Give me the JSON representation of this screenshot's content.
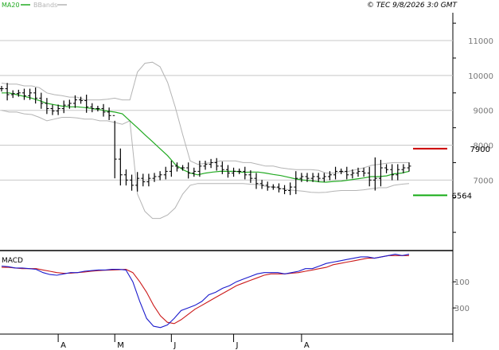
{
  "header": {
    "legend_items": [
      {
        "label": "MA20",
        "color": "#22aa22"
      },
      {
        "label": "BBands",
        "color": "#b4b4b4"
      }
    ],
    "copyright": "© TEC 9/8/2026 3:0 GMT"
  },
  "colors": {
    "price_bars": "#000000",
    "ma20": "#22aa22",
    "bbands": "#b4b4b4",
    "macd_line": "#1a1acc",
    "signal_line": "#cc1a1a",
    "resistance": "#cc0000",
    "support": "#11aa11"
  },
  "chart_data": [
    {
      "type": "ohlc",
      "title": "",
      "ylim": [
        5000,
        11800
      ],
      "y_ticks": [
        7000,
        8000,
        9000,
        10000,
        11000
      ],
      "x_ticks": [
        "A",
        "M",
        "J",
        "J",
        "A"
      ],
      "x_tick_index": [
        10,
        20,
        30,
        41,
        53
      ],
      "levels": [
        {
          "label": "7900",
          "value": 7900,
          "role": "resistance"
        },
        {
          "label": "6564",
          "value": 6564,
          "role": "support"
        }
      ],
      "series": [
        {
          "name": "Price",
          "values": [
            9620,
            9450,
            9480,
            9500,
            9420,
            9500,
            9350,
            9200,
            9050,
            8980,
            9050,
            9150,
            9200,
            9300,
            9280,
            9100,
            9050,
            9050,
            8950,
            8850,
            7600,
            7150,
            7000,
            6850,
            7050,
            6950,
            7050,
            7100,
            7150,
            7250,
            7400,
            7350,
            7350,
            7200,
            7250,
            7400,
            7450,
            7500,
            7400,
            7300,
            7200,
            7250,
            7250,
            7150,
            7050,
            6900,
            6850,
            6800,
            6800,
            6750,
            6700,
            6800,
            7050,
            7100,
            7050,
            7100,
            7050,
            7100,
            7150,
            7250,
            7250,
            7150,
            7200,
            7250,
            7200,
            7000,
            7050,
            7350,
            7300,
            7150,
            7300,
            7350,
            7400
          ]
        },
        {
          "name": "MA20",
          "values": [
            9500,
            9500,
            9450,
            9400,
            9350,
            9280,
            9200,
            9160,
            9120,
            9100,
            9100,
            9080,
            9050,
            9020,
            8980,
            8950,
            8900,
            8700,
            8500,
            8300,
            8100,
            7900,
            7700,
            7450,
            7300,
            7200,
            7150,
            7200,
            7230,
            7250,
            7250,
            7250,
            7220,
            7230,
            7230,
            7200,
            7160,
            7130,
            7080,
            7030,
            7000,
            6980,
            6950,
            6940,
            6960,
            6970,
            7000,
            7030,
            7060,
            7100,
            7100,
            7120,
            7180,
            7200,
            7250
          ]
        },
        {
          "name": "BBand upper",
          "values": [
            9780,
            9750,
            9750,
            9700,
            9700,
            9650,
            9500,
            9450,
            9420,
            9380,
            9380,
            9300,
            9300,
            9300,
            9320,
            9350,
            9300,
            9300,
            10100,
            10350,
            10380,
            10250,
            9800,
            9100,
            8300,
            7550,
            7450,
            7480,
            7500,
            7550,
            7550,
            7550,
            7500,
            7500,
            7450,
            7400,
            7400,
            7350,
            7320,
            7300,
            7300,
            7300,
            7280,
            7200,
            7200,
            7220,
            7250,
            7300,
            7350,
            7420,
            7450,
            7480,
            7500,
            7500,
            7500
          ]
        },
        {
          "name": "BBand lower",
          "values": [
            9000,
            8950,
            8950,
            8900,
            8880,
            8800,
            8700,
            8750,
            8800,
            8800,
            8780,
            8750,
            8750,
            8700,
            8700,
            8650,
            8600,
            8700,
            6600,
            6100,
            5900,
            5900,
            6000,
            6200,
            6600,
            6850,
            6900,
            6900,
            6900,
            6900,
            6900,
            6900,
            6900,
            6880,
            6870,
            6820,
            6800,
            6760,
            6720,
            6700,
            6680,
            6650,
            6640,
            6650,
            6680,
            6700,
            6700,
            6700,
            6720,
            6750,
            6780,
            6780,
            6850,
            6880,
            6900
          ]
        }
      ]
    },
    {
      "type": "line",
      "title": "MACD",
      "ylim": [
        -500,
        120
      ],
      "y_ticks": [
        -100,
        -300
      ],
      "series": [
        {
          "name": "MACD",
          "values": [
            20,
            15,
            5,
            5,
            0,
            -5,
            -30,
            -45,
            -50,
            -40,
            -30,
            -30,
            -20,
            -15,
            -10,
            -10,
            -5,
            -5,
            -10,
            -100,
            -250,
            -380,
            -440,
            -450,
            -430,
            -380,
            -320,
            -300,
            -280,
            -250,
            -200,
            -180,
            -150,
            -130,
            -100,
            -80,
            -60,
            -40,
            -30,
            -30,
            -30,
            -40,
            -30,
            -20,
            0,
            0,
            20,
            40,
            50,
            60,
            70,
            80,
            90,
            90,
            80,
            90,
            100,
            110,
            100,
            110
          ]
        },
        {
          "name": "Signal",
          "values": [
            10,
            10,
            5,
            0,
            0,
            0,
            -10,
            -20,
            -30,
            -35,
            -35,
            -30,
            -25,
            -20,
            -15,
            -12,
            -10,
            -8,
            -5,
            -30,
            -100,
            -180,
            -280,
            -360,
            -410,
            -420,
            -390,
            -350,
            -310,
            -280,
            -250,
            -220,
            -190,
            -160,
            -130,
            -110,
            -90,
            -70,
            -50,
            -40,
            -40,
            -40,
            -35,
            -30,
            -20,
            -10,
            0,
            10,
            30,
            40,
            50,
            60,
            70,
            80,
            80,
            90,
            100,
            100,
            100,
            100
          ]
        }
      ]
    }
  ]
}
